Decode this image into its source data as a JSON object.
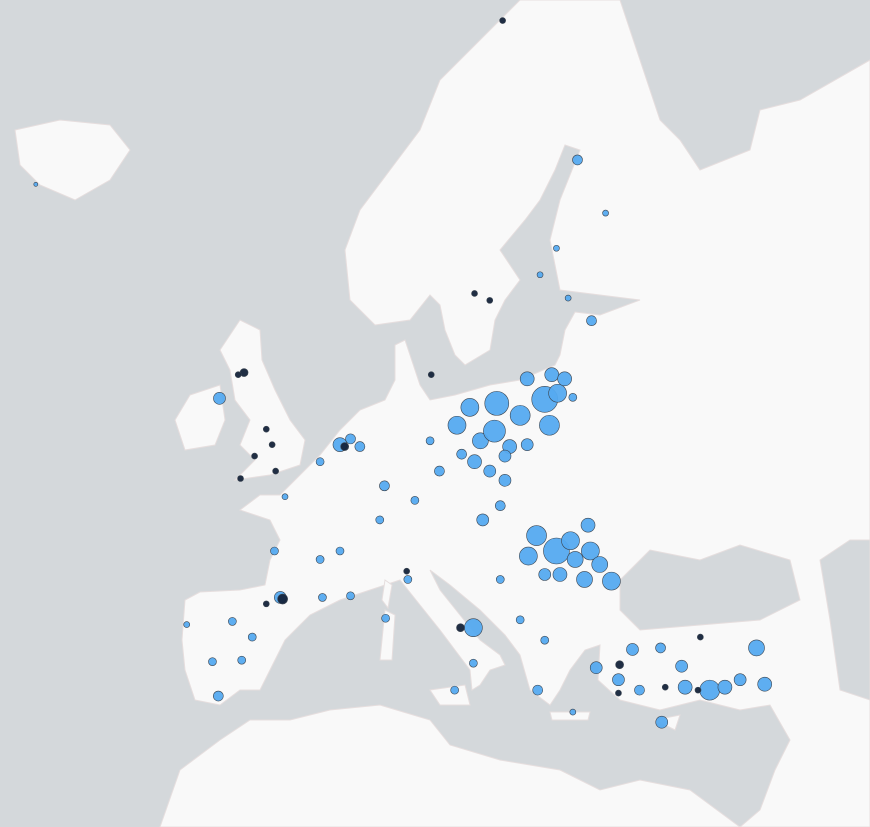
{
  "chart_data": {
    "type": "bubble-map",
    "series": [
      {
        "color": "#55aaf0",
        "lon": [
          15.8,
          18.1,
          20.1,
          14.7,
          16.7,
          17.9,
          19.2,
          16.2,
          22.2,
          22.6,
          23.3,
          22.8,
          23.9,
          20.7,
          20.7,
          17.5,
          18.8,
          15.1,
          21.5,
          23.2,
          24.4,
          24.8,
          26.1,
          26.9,
          20.8,
          27.9,
          25.6,
          23.5,
          22.2,
          25.9,
          40.3,
          36.3,
          37.6,
          38.9,
          41.0,
          34.2,
          33.9,
          29.7,
          26.6,
          28.5,
          32.2,
          30.3,
          32.1,
          16.9,
          18.4,
          18.8,
          4.7,
          5.6,
          6.4,
          3.0,
          8.5,
          13.2,
          11.1,
          8.1,
          12.4,
          -0.9,
          3.0,
          4.7,
          3.2,
          5.6,
          0.0,
          -5.7,
          -3.7,
          -6.2,
          -2.8,
          -4.5,
          -0.4,
          -8.4,
          16.1,
          14.5,
          16.1,
          8.6,
          10.5,
          -5.6,
          25.0,
          27.4,
          23.2,
          21.8,
          24.2,
          26.2,
          24.6,
          -21.3,
          21.6,
          24.6,
          20.1,
          22.2,
          18.4
        ],
        "lat": [
          54.3,
          54.5,
          53.9,
          53.4,
          52.6,
          53.1,
          52.3,
          51.5,
          54.7,
          53.4,
          55.0,
          55.9,
          55.7,
          55.7,
          52.4,
          51.0,
          51.8,
          51.9,
          47.4,
          46.5,
          47.1,
          46.0,
          46.5,
          45.7,
          46.2,
          44.7,
          44.8,
          45.1,
          45.1,
          48.0,
          40.5,
          37.7,
          37.9,
          38.4,
          38.1,
          37.9,
          39.3,
          40.4,
          39.2,
          38.4,
          35.5,
          37.7,
          40.5,
          48.3,
          49.1,
          50.5,
          52.4,
          52.7,
          52.3,
          51.5,
          50.2,
          51.0,
          49.4,
          48.3,
          52.6,
          46.5,
          46.0,
          46.5,
          43.7,
          43.8,
          49.6,
          37.3,
          39.7,
          39.6,
          41.2,
          42.2,
          43.7,
          42.0,
          41.8,
          37.7,
          39.5,
          42.4,
          44.8,
          54.75,
          64.9,
          62.9,
          61.5,
          60.4,
          59.4,
          58.4,
          54.8,
          64.0,
          37.7,
          36.2,
          42.3,
          41.0,
          44.8
        ],
        "values": [
          81,
          144,
          100,
          81,
          64,
          121,
          49,
          49,
          169,
          100,
          81,
          49,
          49,
          49,
          36,
          36,
          36,
          25,
          100,
          169,
          81,
          64,
          81,
          64,
          81,
          81,
          64,
          49,
          36,
          49,
          64,
          100,
          49,
          36,
          49,
          49,
          36,
          36,
          36,
          36,
          36,
          25,
          25,
          36,
          25,
          36,
          49,
          25,
          25,
          16,
          25,
          25,
          16,
          16,
          16,
          16,
          16,
          16,
          16,
          16,
          9,
          25,
          16,
          16,
          16,
          16,
          36,
          9,
          81,
          16,
          16,
          16,
          16,
          36,
          25,
          9,
          9,
          9,
          9,
          25,
          16,
          4,
          25,
          9,
          16,
          16,
          16
        ]
      },
      {
        "color": "#14233a",
        "lon": [
          -0.2,
          -1.6,
          -3.5,
          -4.0,
          -1.6,
          -1.1,
          -0.8,
          -2.6,
          -3.8,
          15.0,
          16.2,
          17.5,
          12.5,
          18.6,
          28.6,
          35.3,
          32.5,
          35.5,
          5.1,
          10.4,
          28.5
        ],
        "lat": [
          43.6,
          43.3,
          56.0,
          55.9,
          53.2,
          52.4,
          51.0,
          51.8,
          50.6,
          41.8,
          59.6,
          59.3,
          55.9,
          69.5,
          39.4,
          37.7,
          37.9,
          41.2,
          52.3,
          45.3,
          37.5
        ],
        "values": [
          25,
          9,
          16,
          9,
          9,
          9,
          9,
          9,
          9,
          16,
          9,
          9,
          9,
          9,
          16,
          9,
          9,
          9,
          16,
          9,
          9
        ]
      }
    ]
  }
}
